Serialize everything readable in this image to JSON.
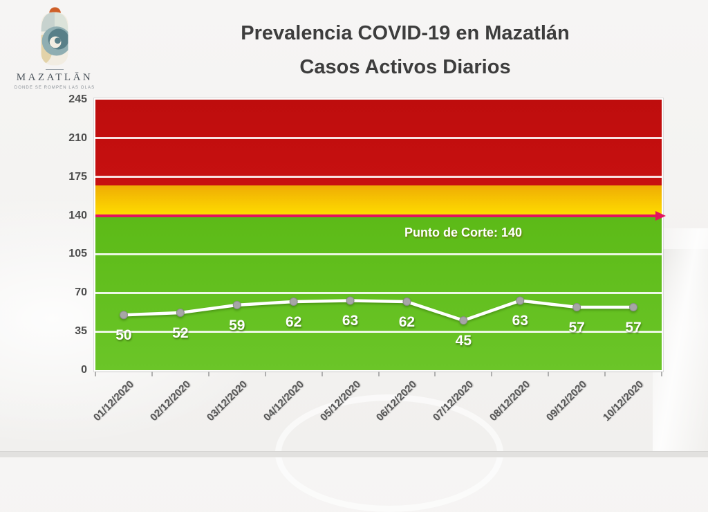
{
  "logo": {
    "wordmark": "MAZATLĀN",
    "tagline": "DONDE SE ROMPEN LAS OLAS",
    "icon": "nautilus-shell-with-sun"
  },
  "title": {
    "line1": "Prevalencia COVID-19 en Mazatlán",
    "line2": "Casos Activos Diarios"
  },
  "chart_data": {
    "type": "line",
    "title": "Prevalencia COVID-19 en Mazatlán",
    "subtitle": "Casos Activos Diarios",
    "x": [
      "01/12/2020",
      "02/12/2020",
      "03/12/2020",
      "04/12/2020",
      "05/12/2020",
      "06/12/2020",
      "07/12/2020",
      "08/12/2020",
      "09/12/2020",
      "10/12/2020"
    ],
    "series": [
      {
        "name": "Casos Activos Diarios",
        "values": [
          50,
          52,
          59,
          62,
          63,
          62,
          45,
          63,
          57,
          57
        ]
      }
    ],
    "ylim": [
      0,
      245
    ],
    "yticks": [
      0,
      35,
      70,
      105,
      140,
      175,
      210,
      245
    ],
    "grid": "horizontal-white",
    "legend": "none",
    "line_color": "#FFFFFF",
    "marker_color": "#A6A6A6",
    "marker_edge_color": "#8A8A8A",
    "data_label_color": "#FFFFFF",
    "zones": [
      {
        "name": "zona-verde",
        "from": 0,
        "to": 140,
        "color_top": "#5CBA17",
        "color_bottom": "#6BC528"
      },
      {
        "name": "zona-amarilla",
        "from": 140,
        "to": 167,
        "color_top": "#EFAC04",
        "color_bottom": "#FFDE00"
      },
      {
        "name": "zona-roja",
        "from": 167,
        "to": 245,
        "color_top": "#BE0D0D",
        "color_bottom": "#C71010"
      }
    ],
    "cutoff": {
      "value": 140,
      "label": "Punto de Corte: 140",
      "color": "#E2145E"
    }
  }
}
